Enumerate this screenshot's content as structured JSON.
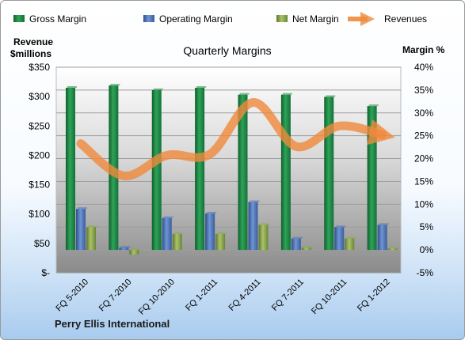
{
  "chart_data": {
    "type": "bar",
    "title": "Quarterly Margins",
    "left_axis_label": [
      "Revenue",
      "$millions"
    ],
    "right_axis_label": "Margin %",
    "categories": [
      "FQ 5-2010",
      "FQ 7-2010",
      "FQ 10-2010",
      "FQ 1-2011",
      "FQ 4-2011",
      "FQ 7-2011",
      "FQ 10-2011",
      "FQ 1-2012"
    ],
    "left_ticks": [
      "$-",
      "$50",
      "$100",
      "$150",
      "$200",
      "$250",
      "$300",
      "$350"
    ],
    "right_ticks": [
      "-5%",
      "0%",
      "5%",
      "10%",
      "15%",
      "20%",
      "25%",
      "30%",
      "35%",
      "40%"
    ],
    "left_axis_range": [
      0,
      350
    ],
    "right_axis_range": [
      -5,
      40
    ],
    "margin_series": [
      {
        "name": "Gross Margin",
        "color": "#1e8a44",
        "values": [
          35.5,
          36.0,
          35.0,
          35.5,
          34.0,
          34.0,
          33.5,
          31.5
        ]
      },
      {
        "name": "Operating Margin",
        "color": "#4a72b8",
        "values": [
          9.0,
          0.5,
          7.0,
          8.0,
          10.5,
          2.5,
          5.0,
          5.5
        ]
      },
      {
        "name": "Net Margin",
        "color": "#8ca94a",
        "values": [
          5.0,
          -1.0,
          3.5,
          3.5,
          5.5,
          0.5,
          2.5,
          0.3
        ]
      }
    ],
    "revenue_series": {
      "name": "Revenues",
      "color": "#f08a3c",
      "values": [
        220,
        165,
        200,
        202,
        290,
        215,
        250,
        235
      ]
    },
    "legend_position": "top",
    "grid": true
  },
  "footer": {
    "company": "Perry Ellis International"
  }
}
